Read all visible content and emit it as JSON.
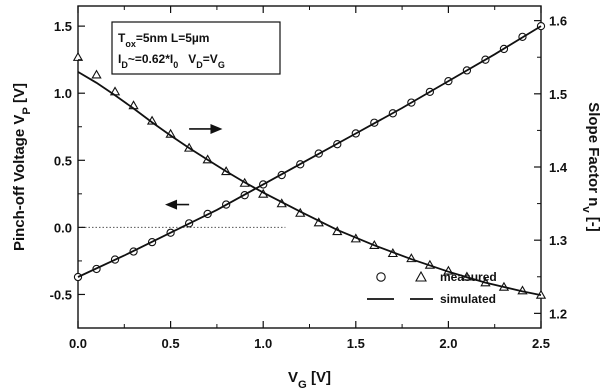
{
  "chart_data": {
    "type": "scatter",
    "xlabel": "V_G [V]",
    "ylabel_left": "Pinch-off Voltage V_P [V]",
    "ylabel_right": "Slope Factor n_v [-]",
    "xlim": [
      0,
      2.5
    ],
    "ylim_left": [
      -0.75,
      1.65
    ],
    "ylim_right": [
      1.18,
      1.62
    ],
    "x_ticks": [
      "0.0",
      "0.5",
      "1.0",
      "1.5",
      "2.0",
      "2.5"
    ],
    "x_tick_values": [
      0,
      0.5,
      1.0,
      1.5,
      2.0,
      2.5
    ],
    "y_left_ticks": [
      "-0.5",
      "0.0",
      "0.5",
      "1.0",
      "1.5"
    ],
    "y_left_tick_values": [
      -0.5,
      0,
      0.5,
      1.0,
      1.5
    ],
    "y_right_ticks": [
      "1.2",
      "1.3",
      "1.4",
      "1.5",
      "1.6"
    ],
    "y_right_tick_values": [
      1.2,
      1.3,
      1.4,
      1.5,
      1.6
    ],
    "annotation_lines": [
      "T_ox=5nm L=5µm",
      "I_D~=0.62*I_0   V_D=V_G"
    ],
    "legend": {
      "measured": "measured",
      "simulated": "simulated",
      "position": "bottom-right"
    },
    "zero_line": {
      "y": 0.0,
      "x_range": [
        0,
        1.12
      ]
    },
    "series": [
      {
        "marker": "circle",
        "axis": "left",
        "x": [
          0.0,
          0.1,
          0.2,
          0.3,
          0.4,
          0.5,
          0.6,
          0.7,
          0.8,
          0.9,
          1.0,
          1.1,
          1.2,
          1.3,
          1.4,
          1.5,
          1.6,
          1.7,
          1.8,
          1.9,
          2.0,
          2.1,
          2.2,
          2.3,
          2.4,
          2.5
        ],
        "values": [
          -0.37,
          -0.31,
          -0.24,
          -0.18,
          -0.11,
          -0.04,
          0.03,
          0.1,
          0.17,
          0.24,
          0.32,
          0.39,
          0.47,
          0.55,
          0.62,
          0.7,
          0.78,
          0.85,
          0.93,
          1.01,
          1.09,
          1.17,
          1.25,
          1.33,
          1.42,
          1.5
        ]
      },
      {
        "marker": "line",
        "axis": "left",
        "x": [
          0.0,
          0.25,
          0.5,
          0.75,
          1.0,
          1.25,
          1.5,
          1.75,
          2.0,
          2.25,
          2.5
        ],
        "values": [
          -0.37,
          -0.21,
          -0.04,
          0.13,
          0.32,
          0.51,
          0.7,
          0.89,
          1.09,
          1.29,
          1.5
        ]
      },
      {
        "marker": "triangle",
        "axis": "right",
        "x": [
          0.0,
          0.1,
          0.2,
          0.3,
          0.4,
          0.5,
          0.6,
          0.7,
          0.8,
          0.9,
          1.0,
          1.1,
          1.2,
          1.3,
          1.4,
          1.5,
          1.6,
          1.7,
          1.8,
          1.9,
          2.0,
          2.1,
          2.2,
          2.3,
          2.4,
          2.5
        ],
        "values": [
          1.55,
          1.526,
          1.503,
          1.484,
          1.463,
          1.445,
          1.426,
          1.41,
          1.394,
          1.378,
          1.363,
          1.35,
          1.337,
          1.324,
          1.312,
          1.302,
          1.293,
          1.282,
          1.275,
          1.266,
          1.258,
          1.25,
          1.242,
          1.236,
          1.231,
          1.225
        ]
      },
      {
        "marker": "line",
        "axis": "right",
        "x": [
          0.0,
          0.1,
          0.2,
          0.3,
          0.4,
          0.5,
          0.6,
          0.7,
          0.8,
          0.9,
          1.0,
          1.2,
          1.4,
          1.6,
          1.8,
          2.0,
          2.2,
          2.4,
          2.5
        ],
        "values": [
          1.53,
          1.515,
          1.498,
          1.48,
          1.461,
          1.443,
          1.426,
          1.41,
          1.394,
          1.379,
          1.365,
          1.339,
          1.314,
          1.293,
          1.274,
          1.257,
          1.242,
          1.23,
          1.225
        ]
      }
    ],
    "arrows": [
      {
        "direction": "right",
        "axis": "right",
        "x": [
          0.6,
          0.78
        ],
        "y": 1.452
      },
      {
        "direction": "left",
        "axis": "left",
        "x": [
          0.47,
          0.6
        ],
        "y": 0.17
      }
    ]
  }
}
